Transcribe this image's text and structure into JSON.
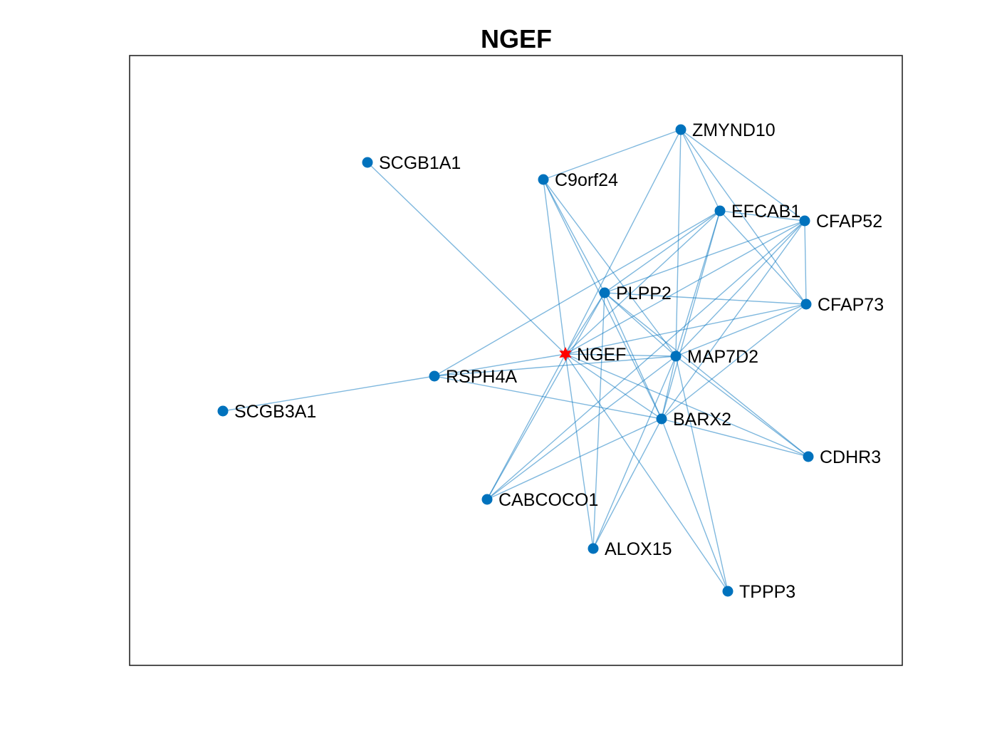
{
  "title": "NGEF",
  "colors": {
    "edge": "#0072BD",
    "node": "#0072BD",
    "hub": "#FF0000",
    "frame": "#262626",
    "background": "#FFFFFF"
  },
  "graph": {
    "hub": "NGEF",
    "nodes": [
      "NGEF",
      "ZMYND10",
      "SCGB1A1",
      "C9orf24",
      "EFCAB1",
      "CFAP52",
      "PLPP2",
      "CFAP73",
      "MAP7D2",
      "RSPH4A",
      "SCGB3A1",
      "BARX2",
      "CDHR3",
      "CABCOCO1",
      "ALOX15",
      "TPPP3"
    ],
    "edges": [
      [
        "NGEF",
        "ZMYND10"
      ],
      [
        "NGEF",
        "SCGB1A1"
      ],
      [
        "NGEF",
        "EFCAB1"
      ],
      [
        "NGEF",
        "CFAP52"
      ],
      [
        "NGEF",
        "PLPP2"
      ],
      [
        "NGEF",
        "MAP7D2"
      ],
      [
        "NGEF",
        "RSPH4A"
      ],
      [
        "NGEF",
        "BARX2"
      ],
      [
        "NGEF",
        "CDHR3"
      ],
      [
        "NGEF",
        "CABCOCO1"
      ],
      [
        "NGEF",
        "ALOX15"
      ],
      [
        "NGEF",
        "TPPP3"
      ],
      [
        "NGEF",
        "CFAP73"
      ],
      [
        "NGEF",
        "C9orf24"
      ],
      [
        "ZMYND10",
        "C9orf24"
      ],
      [
        "ZMYND10",
        "EFCAB1"
      ],
      [
        "ZMYND10",
        "CFAP52"
      ],
      [
        "ZMYND10",
        "CFAP73"
      ],
      [
        "ZMYND10",
        "MAP7D2"
      ],
      [
        "C9orf24",
        "MAP7D2"
      ],
      [
        "C9orf24",
        "BARX2"
      ],
      [
        "C9orf24",
        "PLPP2"
      ],
      [
        "EFCAB1",
        "CFAP52"
      ],
      [
        "EFCAB1",
        "CFAP73"
      ],
      [
        "EFCAB1",
        "PLPP2"
      ],
      [
        "EFCAB1",
        "MAP7D2"
      ],
      [
        "EFCAB1",
        "RSPH4A"
      ],
      [
        "EFCAB1",
        "BARX2"
      ],
      [
        "CFAP52",
        "CFAP73"
      ],
      [
        "CFAP52",
        "PLPP2"
      ],
      [
        "CFAP52",
        "MAP7D2"
      ],
      [
        "CFAP52",
        "BARX2"
      ],
      [
        "CFAP52",
        "CABCOCO1"
      ],
      [
        "PLPP2",
        "CFAP73"
      ],
      [
        "PLPP2",
        "MAP7D2"
      ],
      [
        "PLPP2",
        "BARX2"
      ],
      [
        "PLPP2",
        "CDHR3"
      ],
      [
        "PLPP2",
        "ALOX15"
      ],
      [
        "PLPP2",
        "CABCOCO1"
      ],
      [
        "CFAP73",
        "MAP7D2"
      ],
      [
        "CFAP73",
        "BARX2"
      ],
      [
        "MAP7D2",
        "RSPH4A"
      ],
      [
        "MAP7D2",
        "BARX2"
      ],
      [
        "MAP7D2",
        "CDHR3"
      ],
      [
        "MAP7D2",
        "CABCOCO1"
      ],
      [
        "MAP7D2",
        "ALOX15"
      ],
      [
        "MAP7D2",
        "TPPP3"
      ],
      [
        "RSPH4A",
        "SCGB3A1"
      ],
      [
        "RSPH4A",
        "BARX2"
      ],
      [
        "BARX2",
        "CDHR3"
      ],
      [
        "BARX2",
        "CABCOCO1"
      ],
      [
        "BARX2",
        "ALOX15"
      ],
      [
        "BARX2",
        "TPPP3"
      ]
    ]
  }
}
